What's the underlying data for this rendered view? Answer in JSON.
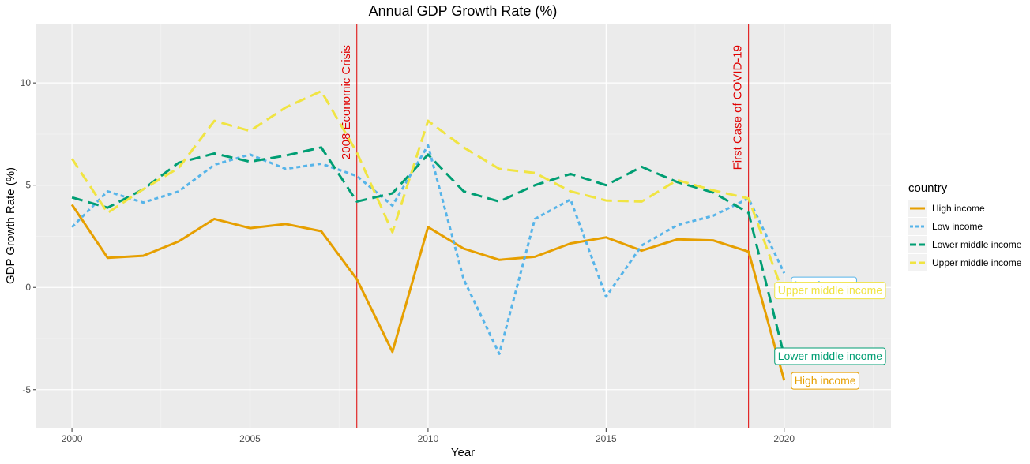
{
  "chart_data": {
    "type": "line",
    "title": "Annual GDP Growth Rate (%)",
    "xlabel": "Year",
    "ylabel": "GDP Growth Rate (%)",
    "xlim": [
      1999,
      2023
    ],
    "ylim": [
      -6.9,
      12.9
    ],
    "xticks": [
      2000,
      2005,
      2010,
      2015,
      2020
    ],
    "yticks": [
      -5,
      0,
      5,
      10
    ],
    "grid": true,
    "legend": {
      "title": "country",
      "position": "right"
    },
    "x": [
      2000,
      2001,
      2002,
      2003,
      2004,
      2005,
      2006,
      2007,
      2008,
      2009,
      2010,
      2011,
      2012,
      2013,
      2014,
      2015,
      2016,
      2017,
      2018,
      2019,
      2020
    ],
    "series": [
      {
        "name": "High income",
        "color": "#E69F00",
        "dash": "solid",
        "values": [
          4.05,
          1.45,
          1.55,
          2.25,
          3.35,
          2.9,
          3.1,
          2.75,
          0.4,
          -3.15,
          2.95,
          1.9,
          1.35,
          1.5,
          2.15,
          2.45,
          1.8,
          2.35,
          2.3,
          1.75,
          -4.55
        ]
      },
      {
        "name": "Low income",
        "color": "#56B4E9",
        "dash": "dotted",
        "values": [
          2.95,
          4.7,
          4.15,
          4.7,
          6.0,
          6.5,
          5.8,
          6.05,
          5.45,
          4.0,
          6.95,
          0.4,
          -3.25,
          3.35,
          4.3,
          -0.45,
          2.05,
          3.05,
          3.5,
          4.35,
          0.7
        ]
      },
      {
        "name": "Lower middle income",
        "color": "#009E73",
        "dash": "dashed",
        "values": [
          4.4,
          3.9,
          4.8,
          6.1,
          6.55,
          6.15,
          6.45,
          6.85,
          4.2,
          4.6,
          6.5,
          4.7,
          4.2,
          5.0,
          5.55,
          5.0,
          5.9,
          5.15,
          4.65,
          3.65,
          -3.35
        ]
      },
      {
        "name": "Upper middle income",
        "color": "#F0E442",
        "dash": "dashed",
        "values": [
          6.3,
          3.65,
          4.8,
          5.85,
          8.15,
          7.65,
          8.8,
          9.6,
          6.6,
          2.7,
          8.15,
          6.85,
          5.8,
          5.6,
          4.7,
          4.25,
          4.2,
          5.25,
          4.75,
          4.35,
          -0.4
        ]
      }
    ],
    "annotations": {
      "vlines": [
        {
          "x": 2008,
          "label": "2008 Economic Crisis",
          "color": "#e00000"
        },
        {
          "x": 2019,
          "label": "First Case of COVID-19",
          "color": "#e00000"
        }
      ],
      "end_labels": [
        {
          "series": "Low income",
          "text": "Low income"
        },
        {
          "series": "Upper middle income",
          "text": "Upper middle income"
        },
        {
          "series": "Lower middle income",
          "text": "Lower middle income"
        },
        {
          "series": "High income",
          "text": "High income"
        }
      ]
    }
  }
}
